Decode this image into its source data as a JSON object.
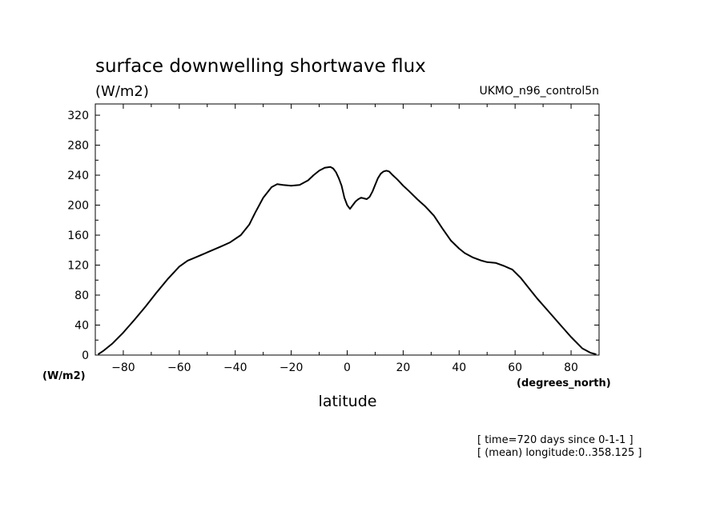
{
  "chart_data": {
    "type": "line",
    "title": "surface downwelling shortwave flux",
    "units_label": "(W/m2)",
    "dataset": "UKMO_n96_control5n",
    "ylabel": "(W/m2)",
    "xlabel": "latitude",
    "xunits": "(degrees_north)",
    "xlim": [
      -90,
      90
    ],
    "ylim": [
      0,
      335
    ],
    "xticks": [
      -80,
      -60,
      -40,
      -20,
      0,
      20,
      40,
      60,
      80
    ],
    "yticks": [
      0,
      40,
      80,
      120,
      160,
      200,
      240,
      280,
      320
    ],
    "grid": false,
    "line_color": "#000000",
    "footnotes": [
      "[ time=720 days since 0-1-1 ]",
      "[ (mean) longitude:0..358.125 ]"
    ],
    "series": [
      {
        "x": [
          -89,
          -87,
          -84,
          -80,
          -76,
          -72,
          -68,
          -64,
          -60,
          -57,
          -55,
          -50,
          -45,
          -42,
          -38,
          -35,
          -33,
          -30,
          -27,
          -25,
          -23,
          -20,
          -17,
          -14,
          -12,
          -10,
          -8,
          -6,
          -5,
          -4,
          -3,
          -2,
          -1,
          0,
          1,
          2,
          3,
          4,
          5,
          6,
          7,
          8,
          9,
          10,
          11,
          12,
          13,
          14,
          15,
          16,
          18,
          20,
          22,
          25,
          28,
          31,
          34,
          37,
          40,
          42,
          45,
          48,
          50,
          53,
          56,
          59,
          62,
          65,
          68,
          72,
          76,
          80,
          84,
          87,
          89
        ],
        "y": [
          1,
          6,
          15,
          30,
          47,
          65,
          84,
          102,
          118,
          126,
          129,
          137,
          145,
          150,
          160,
          174,
          189,
          210,
          224,
          228,
          227,
          226,
          227,
          233,
          240,
          246,
          250,
          251,
          249,
          244,
          236,
          226,
          210,
          200,
          195,
          200,
          205,
          208,
          210,
          209,
          208,
          211,
          218,
          227,
          236,
          242,
          245,
          246,
          245,
          241,
          234,
          226,
          219,
          208,
          198,
          186,
          169,
          153,
          142,
          136,
          130,
          126,
          124,
          123,
          119,
          114,
          103,
          89,
          75,
          58,
          41,
          24,
          9,
          3,
          1
        ]
      }
    ]
  }
}
